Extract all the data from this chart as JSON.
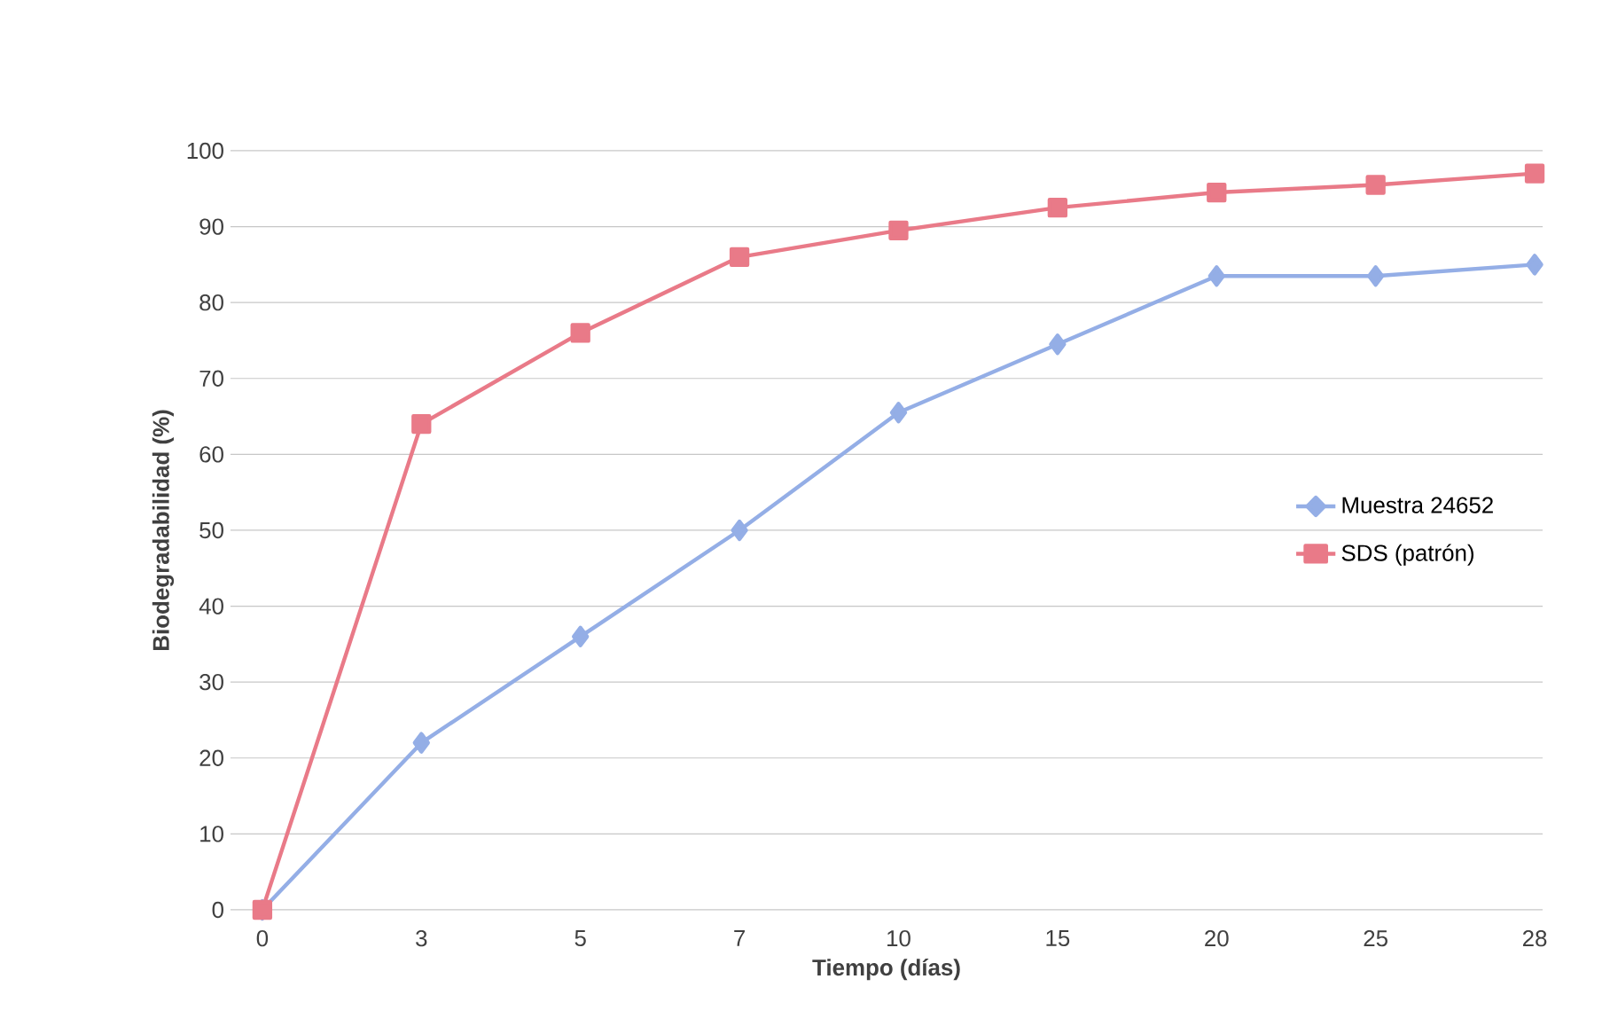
{
  "chart_data": {
    "type": "line",
    "xlabel": "Tiempo (días)",
    "ylabel": "Biodegradabilidad (%)",
    "categories": [
      "0",
      "3",
      "5",
      "7",
      "10",
      "15",
      "20",
      "25",
      "28"
    ],
    "ylim": [
      0,
      100
    ],
    "yticks": [
      0,
      10,
      20,
      30,
      40,
      50,
      60,
      70,
      80,
      90,
      100
    ],
    "grid": "y",
    "legend": "right",
    "line_style": "solid",
    "series": [
      {
        "name": "Muestra 24652",
        "color": "#94aee6",
        "marker": "diamond",
        "values": [
          0,
          22,
          36,
          50,
          65.5,
          74.5,
          83.5,
          83.5,
          85
        ]
      },
      {
        "name": "SDS (patrón)",
        "color": "#e97a88",
        "marker": "square",
        "values": [
          0,
          64,
          76,
          86,
          89.5,
          92.5,
          94.5,
          95.5,
          97
        ]
      }
    ]
  }
}
